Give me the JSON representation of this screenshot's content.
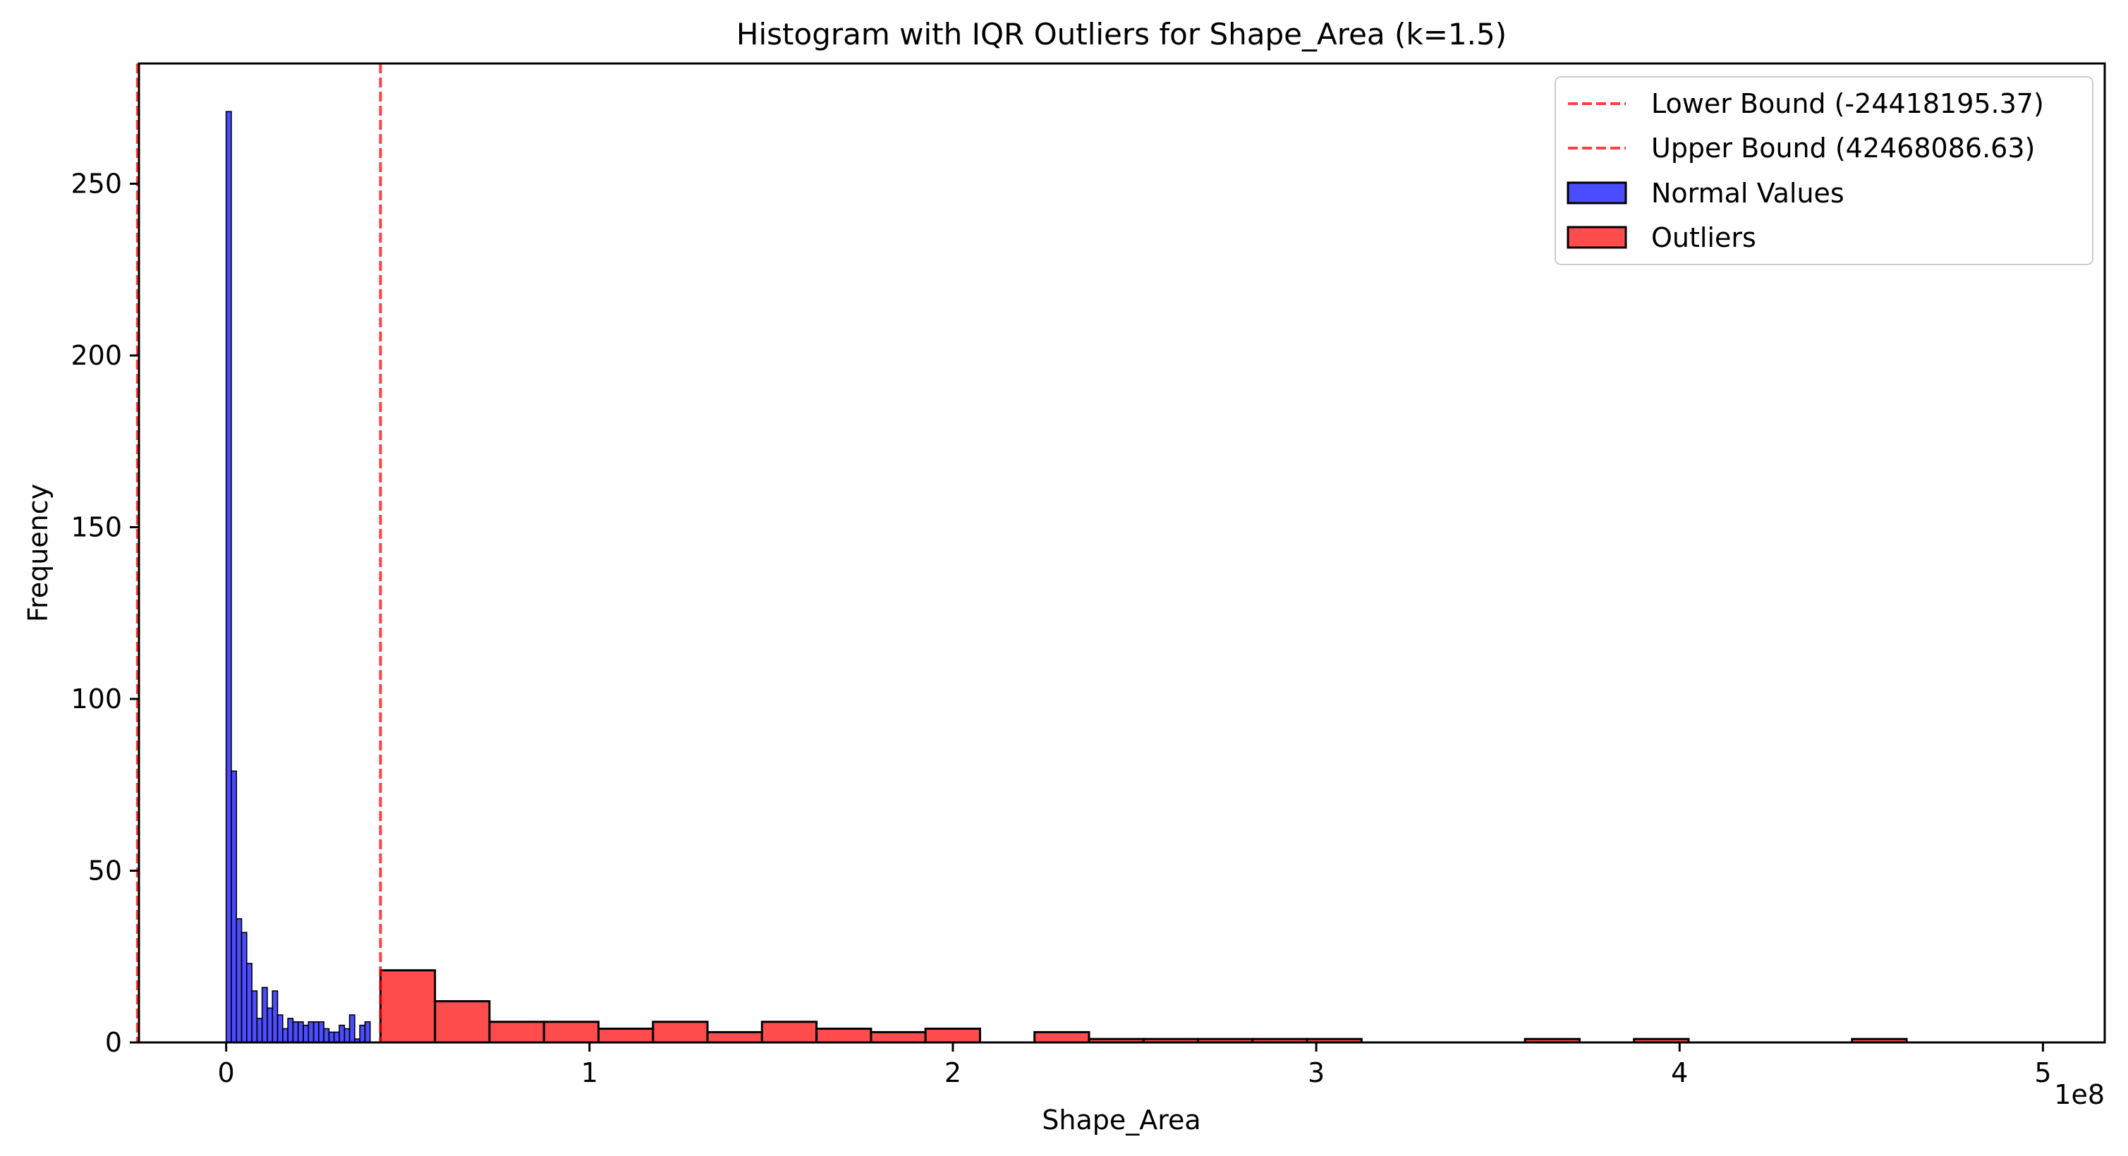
{
  "chart_data": {
    "type": "bar",
    "title": "Histogram with IQR Outliers for Shape_Area (k=1.5)",
    "xlabel": "Shape_Area",
    "ylabel": "Frequency",
    "x_offset_label": "1e8",
    "xlim": [
      -24000000,
      517000000
    ],
    "ylim": [
      0,
      285
    ],
    "xticks": [
      0,
      100000000,
      200000000,
      300000000,
      400000000,
      500000000
    ],
    "xtick_labels": [
      "0",
      "1",
      "2",
      "3",
      "4",
      "5"
    ],
    "yticks": [
      0,
      50,
      100,
      150,
      200,
      250
    ],
    "ytick_labels": [
      "0",
      "50",
      "100",
      "150",
      "200",
      "250"
    ],
    "grid": false,
    "legend_position": "top-right",
    "reference_lines": [
      {
        "name": "Lower Bound (-24418195.37)",
        "x": -24418195.37,
        "color": "#ff0000",
        "style": "dashed"
      },
      {
        "name": "Upper Bound (42468086.63)",
        "x": 42468086.63,
        "color": "#ff0000",
        "style": "dashed"
      }
    ],
    "series": [
      {
        "name": "Normal Values",
        "color": "#0000ff",
        "bin_width": 1415000,
        "bin_start": 0,
        "values": [
          271,
          79,
          36,
          32,
          23,
          15,
          7,
          16,
          10,
          15,
          8,
          4,
          7,
          6,
          6,
          5,
          6,
          6,
          6,
          4,
          3,
          3,
          5,
          4,
          8,
          1,
          5,
          6
        ]
      },
      {
        "name": "Outliers",
        "color": "#ff0000",
        "bin_width": 15000000,
        "bin_start": 42468086.63,
        "values": [
          21,
          12,
          6,
          6,
          4,
          6,
          3,
          6,
          4,
          3,
          4,
          0,
          3,
          1,
          1,
          1,
          1,
          1,
          0,
          0,
          0,
          1,
          0,
          1,
          0,
          0,
          0,
          1
        ]
      }
    ]
  }
}
